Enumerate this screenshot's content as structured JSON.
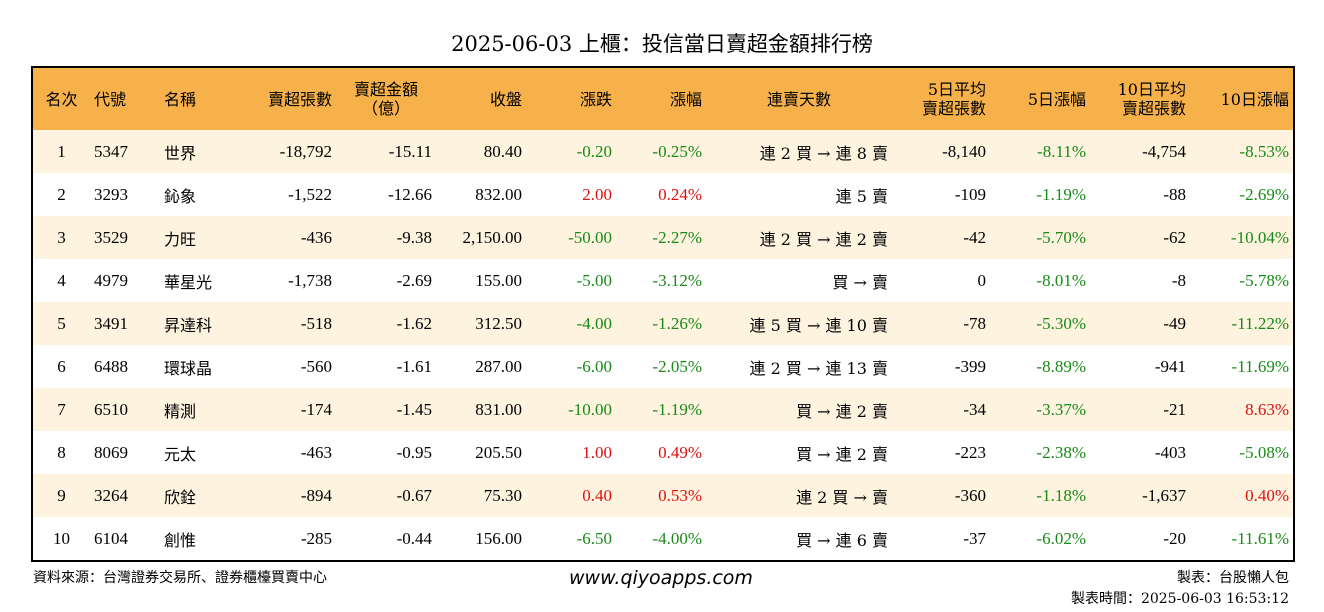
{
  "title": "2025-06-03 上櫃：投信當日賣超金額排行榜",
  "headers": {
    "rank": "名次",
    "code": "代號",
    "name": "名稱",
    "sell_shares": "賣超張數",
    "sell_amount_1": "賣超金額",
    "sell_amount_2": "（億）",
    "close": "收盤",
    "change": "漲跌",
    "pct": "漲幅",
    "streak": "連賣天數",
    "avg5_1": "5日平均",
    "avg5_2": "賣超張數",
    "pct5": "5日漲幅",
    "avg10_1": "10日平均",
    "avg10_2": "賣超張數",
    "pct10": "10日漲幅"
  },
  "rows": [
    {
      "rank": "1",
      "code": "5347",
      "name": "世界",
      "sell": "-18,792",
      "amount": "-15.11",
      "close": "80.40",
      "change": "-0.20",
      "pct": "-0.25%",
      "streak": "連 2 買 → 連 8 賣",
      "avg5": "-8,140",
      "pct5": "-8.11%",
      "avg10": "-4,754",
      "pct10": "-8.53%"
    },
    {
      "rank": "2",
      "code": "3293",
      "name": "鈊象",
      "sell": "-1,522",
      "amount": "-12.66",
      "close": "832.00",
      "change": "2.00",
      "pct": "0.24%",
      "streak": "連 5 賣",
      "avg5": "-109",
      "pct5": "-1.19%",
      "avg10": "-88",
      "pct10": "-2.69%"
    },
    {
      "rank": "3",
      "code": "3529",
      "name": "力旺",
      "sell": "-436",
      "amount": "-9.38",
      "close": "2,150.00",
      "change": "-50.00",
      "pct": "-2.27%",
      "streak": "連 2 買 → 連 2 賣",
      "avg5": "-42",
      "pct5": "-5.70%",
      "avg10": "-62",
      "pct10": "-10.04%"
    },
    {
      "rank": "4",
      "code": "4979",
      "name": "華星光",
      "sell": "-1,738",
      "amount": "-2.69",
      "close": "155.00",
      "change": "-5.00",
      "pct": "-3.12%",
      "streak": "買 → 賣",
      "avg5": "0",
      "pct5": "-8.01%",
      "avg10": "-8",
      "pct10": "-5.78%"
    },
    {
      "rank": "5",
      "code": "3491",
      "name": "昇達科",
      "sell": "-518",
      "amount": "-1.62",
      "close": "312.50",
      "change": "-4.00",
      "pct": "-1.26%",
      "streak": "連 5 買 → 連 10 賣",
      "avg5": "-78",
      "pct5": "-5.30%",
      "avg10": "-49",
      "pct10": "-11.22%"
    },
    {
      "rank": "6",
      "code": "6488",
      "name": "環球晶",
      "sell": "-560",
      "amount": "-1.61",
      "close": "287.00",
      "change": "-6.00",
      "pct": "-2.05%",
      "streak": "連 2 買 → 連 13 賣",
      "avg5": "-399",
      "pct5": "-8.89%",
      "avg10": "-941",
      "pct10": "-11.69%"
    },
    {
      "rank": "7",
      "code": "6510",
      "name": "精測",
      "sell": "-174",
      "amount": "-1.45",
      "close": "831.00",
      "change": "-10.00",
      "pct": "-1.19%",
      "streak": "買 → 連 2 賣",
      "avg5": "-34",
      "pct5": "-3.37%",
      "avg10": "-21",
      "pct10": "8.63%"
    },
    {
      "rank": "8",
      "code": "8069",
      "name": "元太",
      "sell": "-463",
      "amount": "-0.95",
      "close": "205.50",
      "change": "1.00",
      "pct": "0.49%",
      "streak": "買 → 連 2 賣",
      "avg5": "-223",
      "pct5": "-2.38%",
      "avg10": "-403",
      "pct10": "-5.08%"
    },
    {
      "rank": "9",
      "code": "3264",
      "name": "欣銓",
      "sell": "-894",
      "amount": "-0.67",
      "close": "75.30",
      "change": "0.40",
      "pct": "0.53%",
      "streak": "連 2 買 → 賣",
      "avg5": "-360",
      "pct5": "-1.18%",
      "avg10": "-1,637",
      "pct10": "0.40%"
    },
    {
      "rank": "10",
      "code": "6104",
      "name": "創惟",
      "sell": "-285",
      "amount": "-0.44",
      "close": "156.00",
      "change": "-6.50",
      "pct": "-4.00%",
      "streak": "買 → 連 6 賣",
      "avg5": "-37",
      "pct5": "-6.02%",
      "avg10": "-20",
      "pct10": "-11.61%"
    }
  ],
  "colors": {
    "header_bg": "#f6b14a",
    "row_alt_bg": "#fdf3de",
    "up": "#dd1111",
    "down": "#188a18"
  },
  "footer": {
    "source": "資料來源：台灣證券交易所、證券櫃檯買賣中心",
    "website": "www.qiyoapps.com",
    "maker": "製表：台股懶人包",
    "made_time": "製表時間：2025-06-03 16:53:12"
  }
}
